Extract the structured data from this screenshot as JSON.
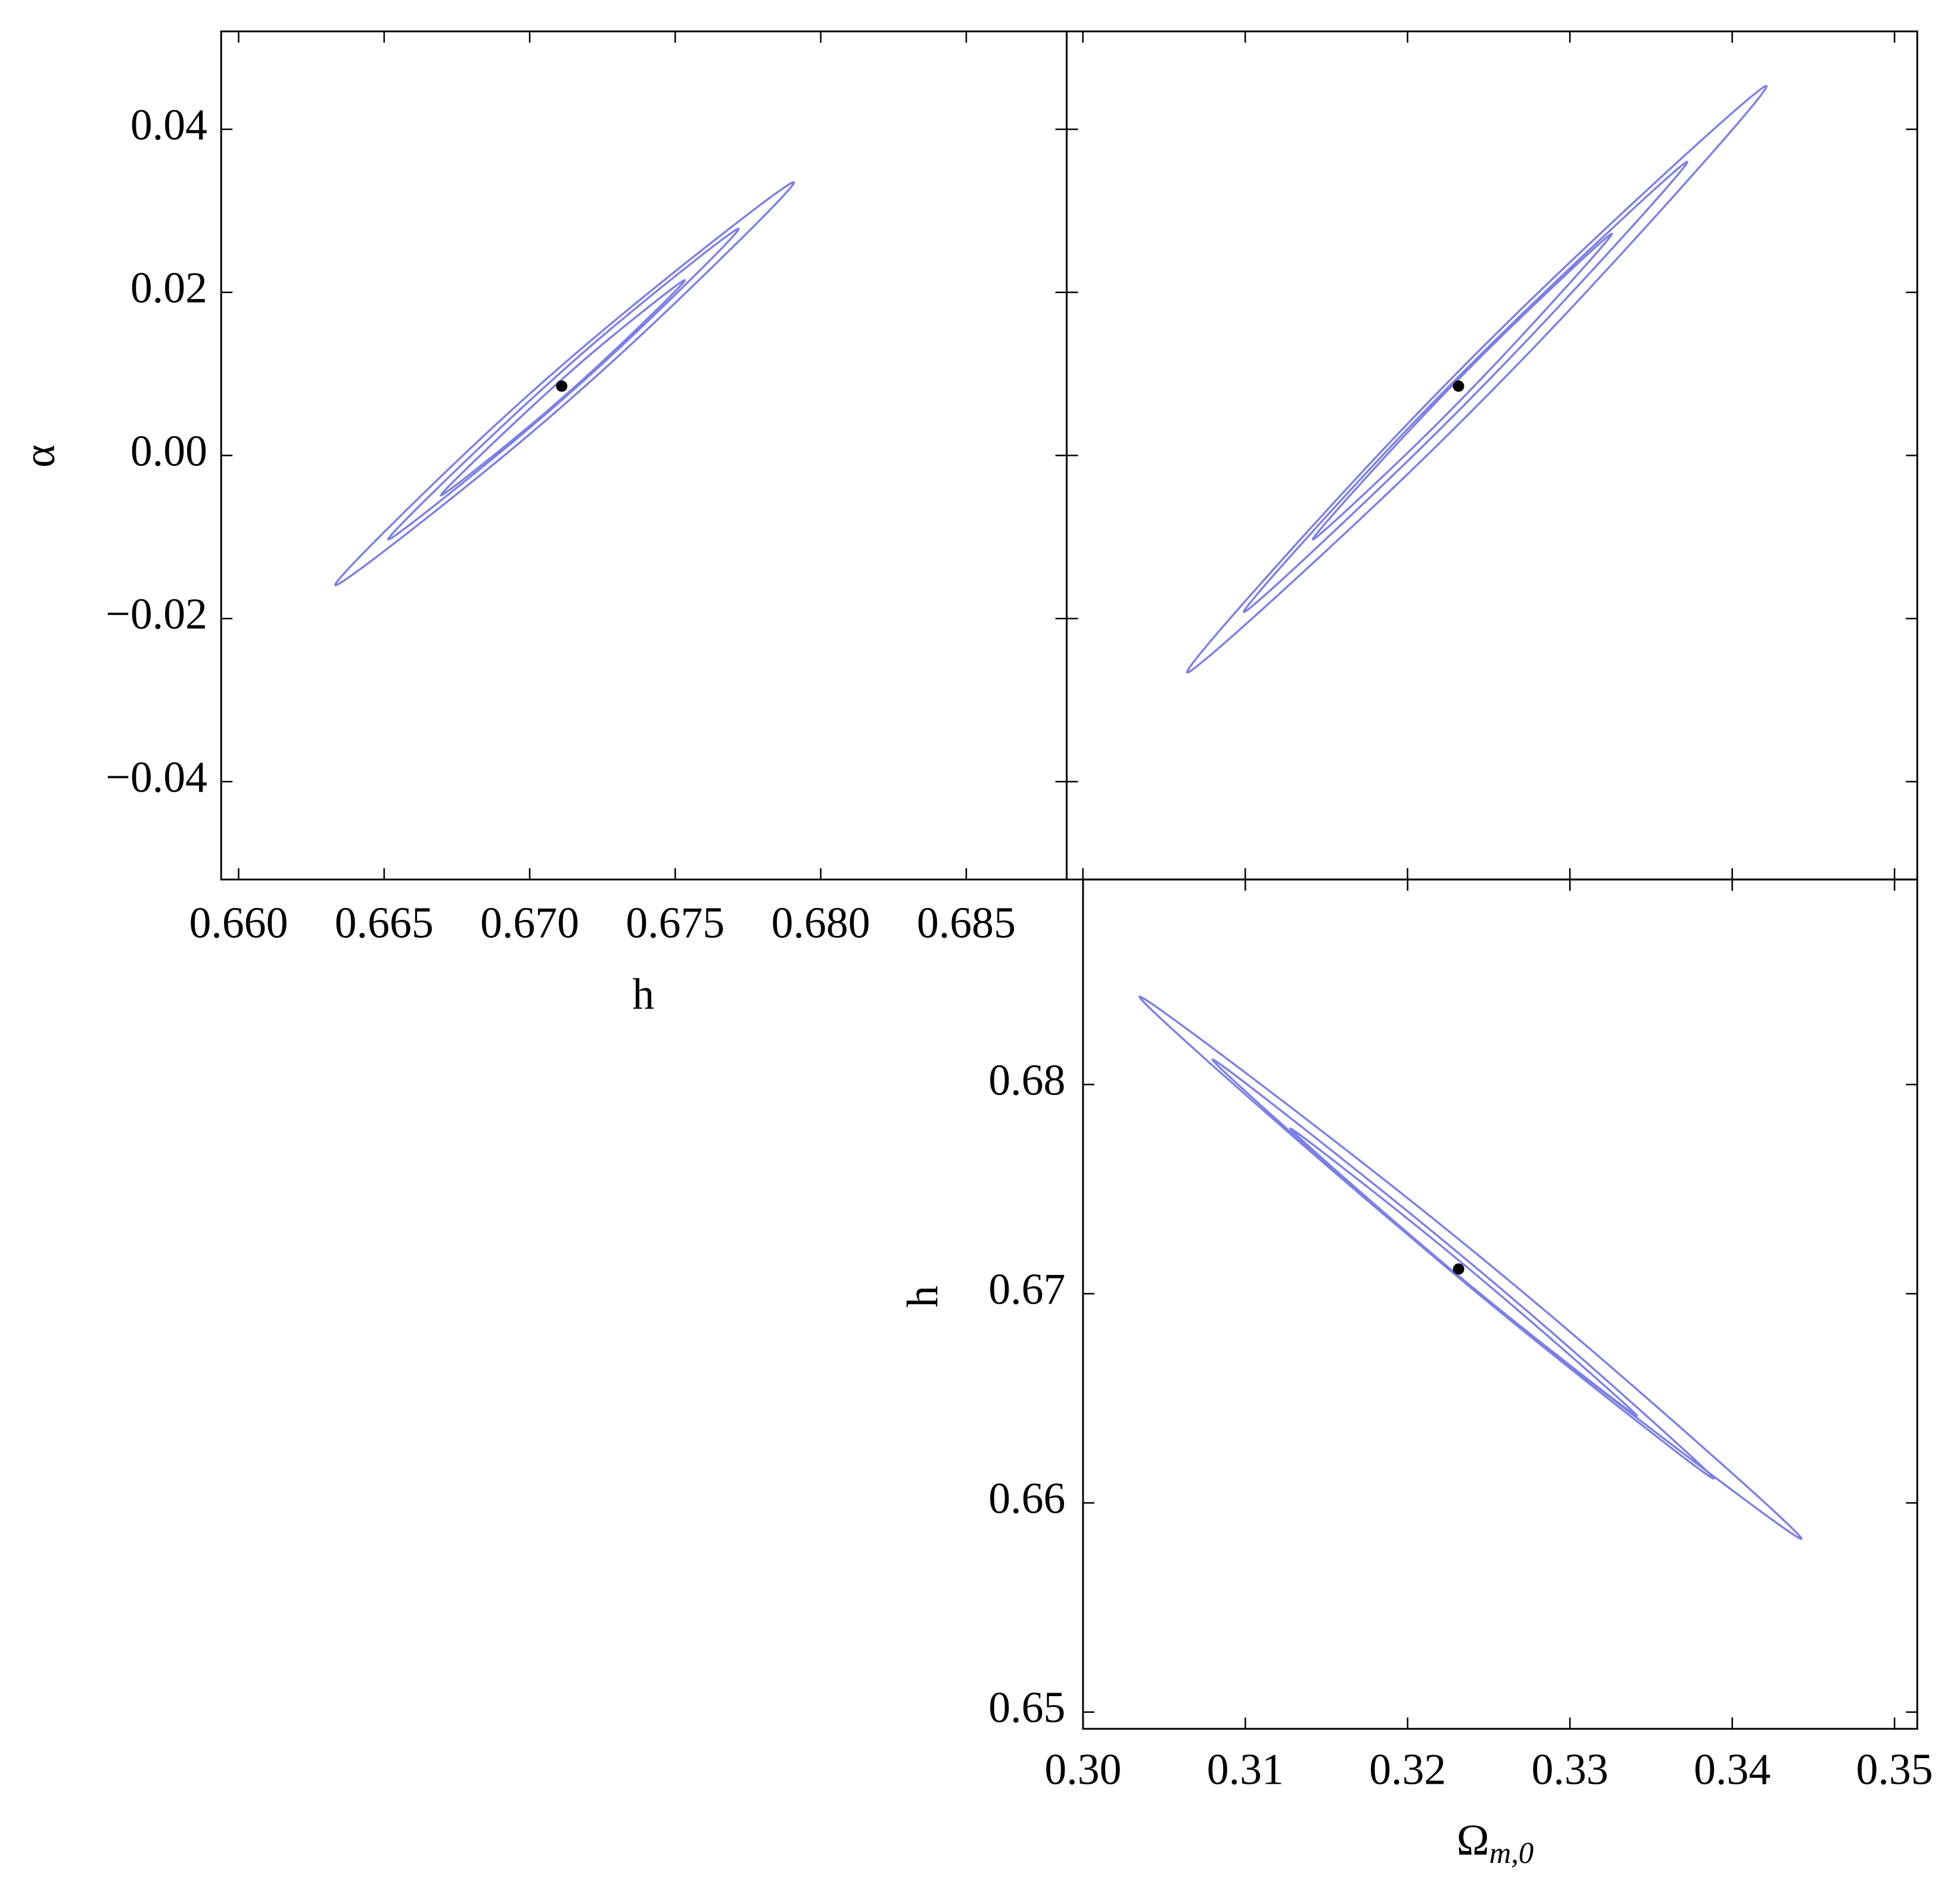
{
  "chart_data": [
    {
      "type": "contour",
      "x_label": "h",
      "y_label": "α",
      "xlim": [
        0.6594,
        0.68845
      ],
      "ylim": [
        -0.052,
        0.052
      ],
      "xticks": [
        {
          "value": 0.66,
          "label": "0.660"
        },
        0.665,
        {
          "value": 0.67,
          "label": "0.670"
        },
        0.675,
        {
          "value": 0.68,
          "label": "0.680"
        },
        0.685
      ],
      "yticks": [
        {
          "value": -0.04,
          "label": "−0.04"
        },
        {
          "value": -0.02,
          "label": "−0.02"
        },
        {
          "value": 0,
          "label": "0.00"
        },
        0.02,
        0.04
      ],
      "contour_color": "#7b80e6",
      "contours": [
        {
          "x": [
            0.66332,
            0.66889,
            0.67414,
            0.67908,
            0.67352,
            0.66827
          ],
          "y": [
            -0.0159,
            -0.0007,
            0.0158,
            0.0335,
            0.0183,
            0.0019
          ]
        },
        {
          "x": [
            0.66514,
            0.66937,
            0.67339,
            0.67718,
            0.67295,
            0.66894
          ],
          "y": [
            -0.0103,
            0.0015,
            0.0142,
            0.0278,
            0.016,
            0.0032
          ]
        },
        {
          "x": [
            0.66695,
            0.66989,
            0.67268,
            0.67533,
            0.67239,
            0.6696
          ],
          "y": [
            -0.0049,
            0.0033,
            0.0121,
            0.0215,
            0.0133,
            0.0044
          ]
        }
      ],
      "best_fit": {
        "x": 0.6711,
        "y": 0.0085
      }
    },
    {
      "type": "contour",
      "tick_labels": false,
      "xlim": [
        0.299,
        0.3514
      ],
      "ylim": [
        -0.052,
        0.052
      ],
      "xticks": [
        0.3,
        0.31,
        0.32,
        0.33,
        0.34,
        0.35
      ],
      "yticks": [
        -0.04,
        -0.02,
        0,
        0.02,
        0.04
      ],
      "contour_color": "#7b80e6",
      "contours": [
        {
          "x": [
            0.30642,
            0.31905,
            0.33094,
            0.34211,
            0.32948,
            0.31759
          ],
          "y": [
            -0.0266,
            -0.0041,
            0.0199,
            0.0453,
            0.0227,
            -0.0012
          ]
        },
        {
          "x": [
            0.30991,
            0.31948,
            0.32858,
            0.33723,
            0.32766,
            0.31855
          ],
          "y": [
            -0.0192,
            -0.0017,
            0.0167,
            0.036,
            0.0185,
            0.0002
          ]
        },
        {
          "x": [
            0.31416,
            0.32061,
            0.32676,
            0.33259,
            0.32614,
            0.31999
          ],
          "y": [
            -0.0103,
            0.0015,
            0.0141,
            0.0272,
            0.0153,
            0.0028
          ]
        }
      ],
      "best_fit": {
        "x": 0.32314,
        "y": 0.0085
      }
    },
    {
      "type": "contour",
      "x_label": "Ω",
      "x_label_sub": "m,0",
      "y_label": "h",
      "xlim": [
        0.3,
        0.3514
      ],
      "ylim": [
        0.6492,
        0.6898
      ],
      "xticks": [
        {
          "value": 0.3,
          "label": "0.30"
        },
        0.31,
        0.32,
        0.33,
        0.34,
        0.35
      ],
      "yticks": [
        0.65,
        0.66,
        0.67,
        0.68
      ],
      "contour_color": "#7b80e6",
      "contours": [
        {
          "x": [
            0.30348,
            0.31658,
            0.33017,
            0.34427,
            0.33118,
            0.31759
          ],
          "y": [
            0.6842,
            0.67508,
            0.66644,
            0.65828,
            0.6674,
            0.67604
          ]
        },
        {
          "x": [
            0.30797,
            0.31794,
            0.32824,
            0.33885,
            0.32889,
            0.31859
          ],
          "y": [
            0.6812,
            0.67421,
            0.66753,
            0.66116,
            0.66815,
            0.67482
          ]
        },
        {
          "x": [
            0.31277,
            0.31968,
            0.3268,
            0.33413,
            0.32722,
            0.3201
          ],
          "y": [
            0.6779,
            0.67312,
            0.66854,
            0.66416,
            0.66893,
            0.67352
          ]
        }
      ],
      "best_fit": {
        "x": 0.32314,
        "y": 0.67118
      }
    }
  ]
}
